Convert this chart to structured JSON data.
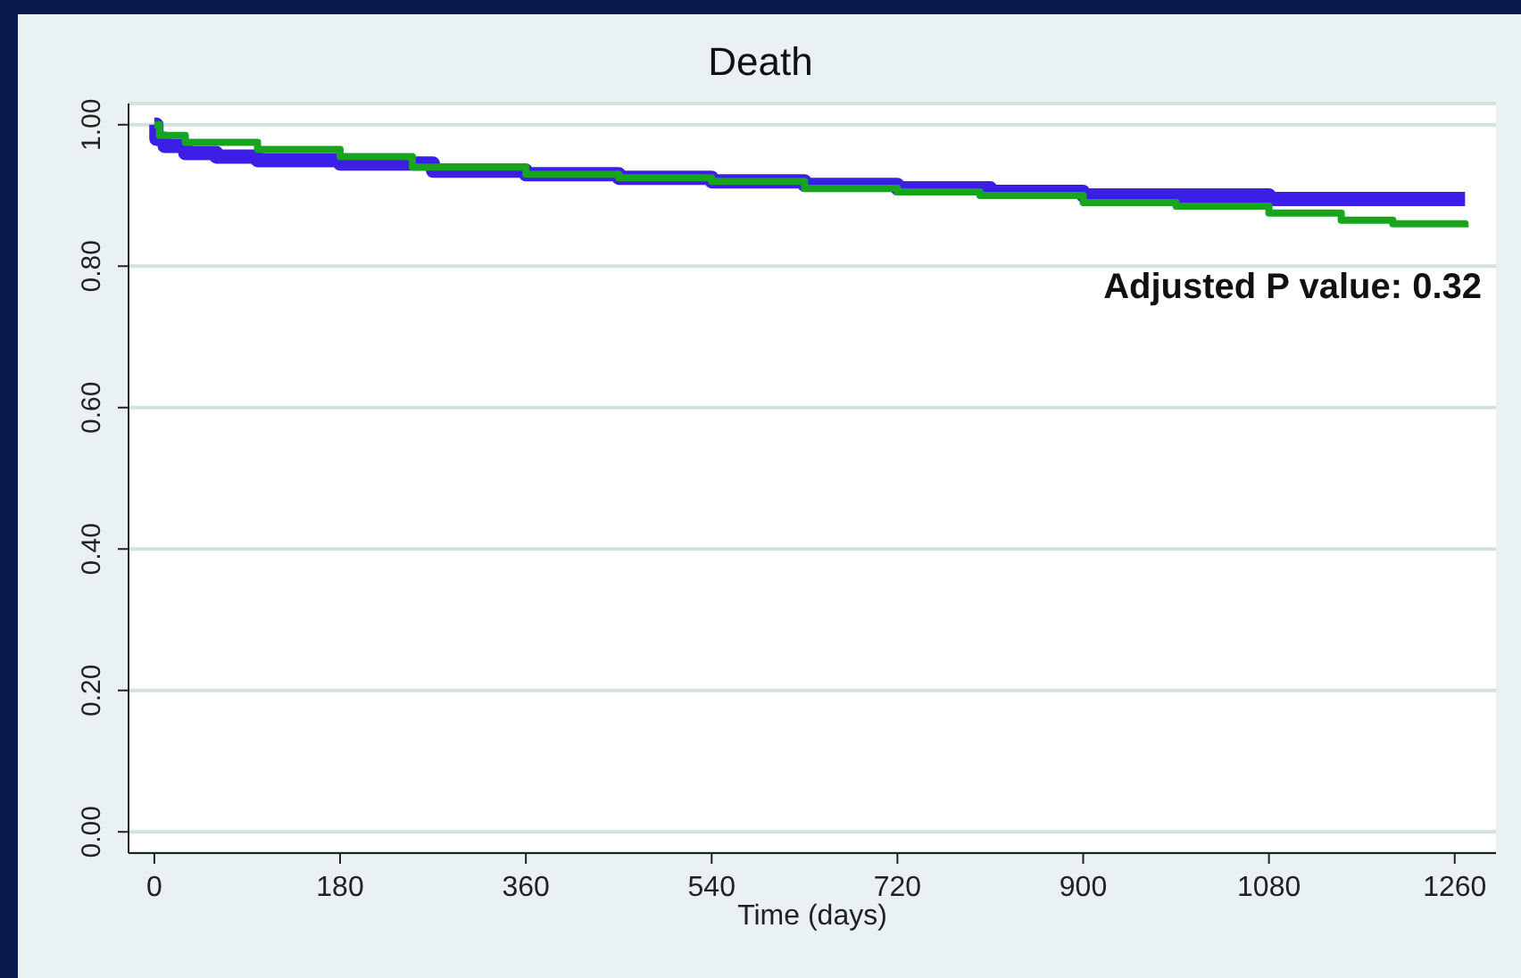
{
  "chart_data": {
    "type": "step",
    "title": "Death",
    "xlabel": "Time (days)",
    "annotations": [
      "Adjusted P value: 0.32"
    ],
    "xlim": [
      -25,
      1300
    ],
    "xticks": [
      0,
      180,
      360,
      540,
      720,
      900,
      1080,
      1260
    ],
    "ylim": [
      -0.03,
      1.03
    ],
    "yticks": [
      {
        "value": 0,
        "label": "0.00"
      },
      {
        "value": 0.2,
        "label": "0.20"
      },
      {
        "value": 0.4,
        "label": "0.40"
      },
      {
        "value": 0.6,
        "label": "0.60"
      },
      {
        "value": 0.8,
        "label": "0.80"
      },
      {
        "value": 1,
        "label": "1.00"
      }
    ],
    "grid": "y",
    "marker": "none",
    "line_style": "solid",
    "series": [
      {
        "color": "#3b1fe6",
        "x": [
          0,
          2,
          10,
          30,
          60,
          100,
          180,
          270,
          360,
          450,
          540,
          630,
          720,
          810,
          900,
          990,
          1080,
          1170,
          1270
        ],
        "values": [
          1.0,
          0.98,
          0.97,
          0.96,
          0.955,
          0.95,
          0.945,
          0.935,
          0.93,
          0.925,
          0.92,
          0.915,
          0.91,
          0.905,
          0.9,
          0.9,
          0.895,
          0.895,
          0.895
        ]
      },
      {
        "color": "#16a51c",
        "x": [
          0,
          5,
          30,
          100,
          180,
          250,
          360,
          450,
          540,
          630,
          720,
          800,
          900,
          990,
          1080,
          1150,
          1200,
          1270
        ],
        "values": [
          1.0,
          0.985,
          0.975,
          0.965,
          0.955,
          0.94,
          0.93,
          0.925,
          0.92,
          0.91,
          0.905,
          0.9,
          0.89,
          0.885,
          0.875,
          0.865,
          0.86,
          0.855
        ]
      }
    ]
  }
}
